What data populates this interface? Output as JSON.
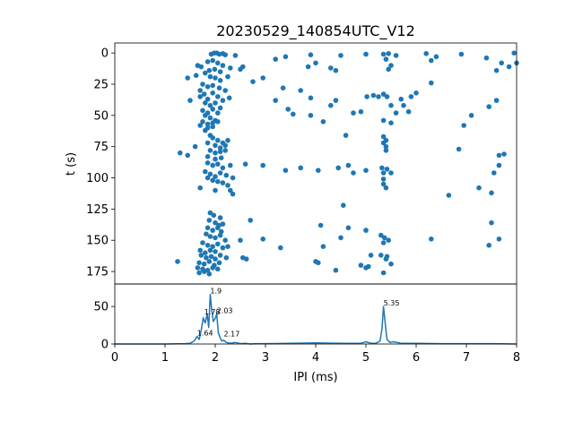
{
  "chart_data": [
    {
      "type": "scatter",
      "title": "20230529_140854UTC_V12",
      "xlabel": "",
      "ylabel": "t (s)",
      "xlim": [
        0,
        8
      ],
      "ylim": [
        185,
        -8
      ],
      "yticks": [
        0,
        25,
        50,
        75,
        100,
        125,
        150,
        175
      ],
      "color": "#1f77b4",
      "points": [
        [
          1.98,
          0
        ],
        [
          2.03,
          0
        ],
        [
          2.15,
          0.5
        ],
        [
          1.92,
          1
        ],
        [
          2.08,
          1
        ],
        [
          2.2,
          1.5
        ],
        [
          2.4,
          2
        ],
        [
          3.4,
          3
        ],
        [
          3.9,
          1.5
        ],
        [
          4.5,
          2
        ],
        [
          5.0,
          1
        ],
        [
          5.35,
          1
        ],
        [
          5.45,
          0.5
        ],
        [
          6.2,
          0.5
        ],
        [
          6.4,
          3
        ],
        [
          6.9,
          1
        ],
        [
          7.4,
          4
        ],
        [
          7.7,
          8
        ],
        [
          7.95,
          0
        ],
        [
          8.0,
          8
        ],
        [
          5.6,
          2
        ],
        [
          5.4,
          5
        ],
        [
          1.65,
          10
        ],
        [
          1.72,
          11
        ],
        [
          1.85,
          7
        ],
        [
          1.95,
          6
        ],
        [
          2.05,
          8
        ],
        [
          2.15,
          10
        ],
        [
          2.3,
          12
        ],
        [
          2.5,
          13
        ],
        [
          2.55,
          11
        ],
        [
          3.2,
          5
        ],
        [
          4.0,
          8
        ],
        [
          4.4,
          14
        ],
        [
          4.3,
          12
        ],
        [
          3.85,
          11
        ],
        [
          5.5,
          10
        ],
        [
          5.45,
          13
        ],
        [
          6.3,
          6
        ],
        [
          7.85,
          11
        ],
        [
          7.6,
          14
        ],
        [
          2.1,
          15
        ],
        [
          1.99,
          13
        ],
        [
          1.88,
          14
        ],
        [
          1.45,
          20
        ],
        [
          1.62,
          18
        ],
        [
          1.8,
          16
        ],
        [
          1.9,
          19
        ],
        [
          2.0,
          20
        ],
        [
          2.1,
          22
        ],
        [
          2.25,
          19
        ],
        [
          2.75,
          23
        ],
        [
          2.95,
          20
        ],
        [
          6.3,
          24
        ],
        [
          1.75,
          25
        ],
        [
          1.85,
          27
        ],
        [
          1.95,
          26
        ],
        [
          2.08,
          28
        ],
        [
          2.2,
          30
        ],
        [
          3.35,
          28
        ],
        [
          3.7,
          30
        ],
        [
          1.7,
          30
        ],
        [
          1.5,
          38
        ],
        [
          1.7,
          35
        ],
        [
          1.78,
          33
        ],
        [
          1.85,
          37
        ],
        [
          1.95,
          32
        ],
        [
          2.05,
          35
        ],
        [
          2.15,
          38
        ],
        [
          2.28,
          36
        ],
        [
          3.2,
          38
        ],
        [
          3.9,
          36
        ],
        [
          4.4,
          38
        ],
        [
          5.02,
          35
        ],
        [
          5.15,
          34
        ],
        [
          5.25,
          35
        ],
        [
          5.35,
          33
        ],
        [
          5.42,
          35
        ],
        [
          5.7,
          37
        ],
        [
          5.9,
          35
        ],
        [
          6.0,
          32
        ],
        [
          7.6,
          38
        ],
        [
          7.45,
          43
        ],
        [
          1.8,
          40
        ],
        [
          1.9,
          42
        ],
        [
          2.0,
          40
        ],
        [
          2.1,
          44
        ],
        [
          1.75,
          46
        ],
        [
          1.85,
          48
        ],
        [
          1.95,
          45
        ],
        [
          2.05,
          48
        ],
        [
          3.45,
          45
        ],
        [
          3.55,
          49
        ],
        [
          4.3,
          42
        ],
        [
          4.75,
          48
        ],
        [
          4.9,
          47
        ],
        [
          5.5,
          42
        ],
        [
          5.75,
          42
        ],
        [
          5.85,
          47
        ],
        [
          5.6,
          48
        ],
        [
          7.1,
          50
        ],
        [
          1.8,
          50
        ],
        [
          1.9,
          52
        ],
        [
          2.0,
          54
        ],
        [
          3.9,
          50
        ],
        [
          1.75,
          55
        ],
        [
          1.85,
          57
        ],
        [
          1.95,
          56
        ],
        [
          2.05,
          55
        ],
        [
          4.15,
          55
        ],
        [
          5.35,
          54
        ],
        [
          5.5,
          56
        ],
        [
          6.95,
          58
        ],
        [
          1.7,
          58
        ],
        [
          1.85,
          60
        ],
        [
          1.95,
          59
        ],
        [
          1.8,
          62
        ],
        [
          4.6,
          66
        ],
        [
          1.9,
          66
        ],
        [
          1.95,
          68
        ],
        [
          2.05,
          70
        ],
        [
          2.15,
          72
        ],
        [
          2.25,
          70
        ],
        [
          5.35,
          67
        ],
        [
          5.4,
          70
        ],
        [
          1.85,
          72
        ],
        [
          2.0,
          74
        ],
        [
          2.1,
          76
        ],
        [
          2.2,
          74
        ],
        [
          5.35,
          72
        ],
        [
          5.4,
          75
        ],
        [
          1.6,
          75
        ],
        [
          6.85,
          77
        ],
        [
          1.9,
          78
        ],
        [
          2.0,
          80
        ],
        [
          2.1,
          79
        ],
        [
          2.2,
          78
        ],
        [
          5.4,
          78
        ],
        [
          1.3,
          80
        ],
        [
          1.45,
          82
        ],
        [
          1.85,
          83
        ],
        [
          2.0,
          85
        ],
        [
          2.12,
          84
        ],
        [
          7.65,
          82
        ],
        [
          7.75,
          81
        ],
        [
          1.85,
          88
        ],
        [
          1.95,
          90
        ],
        [
          2.05,
          89
        ],
        [
          2.15,
          92
        ],
        [
          2.3,
          90
        ],
        [
          2.6,
          89
        ],
        [
          2.95,
          90
        ],
        [
          3.4,
          94
        ],
        [
          3.7,
          92
        ],
        [
          4.05,
          94
        ],
        [
          4.45,
          92
        ],
        [
          4.65,
          90
        ],
        [
          5.0,
          94
        ],
        [
          5.32,
          92
        ],
        [
          5.42,
          93
        ],
        [
          5.5,
          96
        ],
        [
          5.35,
          96
        ],
        [
          7.55,
          96
        ],
        [
          1.8,
          95
        ],
        [
          1.9,
          97
        ],
        [
          2.0,
          99
        ],
        [
          2.1,
          96
        ],
        [
          2.22,
          98
        ],
        [
          2.35,
          100
        ],
        [
          4.75,
          96
        ],
        [
          7.65,
          90
        ],
        [
          1.85,
          100
        ],
        [
          1.95,
          102
        ],
        [
          2.05,
          103
        ],
        [
          2.15,
          104
        ],
        [
          2.25,
          106
        ],
        [
          5.35,
          101
        ],
        [
          1.7,
          108
        ],
        [
          2.0,
          110
        ],
        [
          2.3,
          110
        ],
        [
          2.35,
          113
        ],
        [
          5.35,
          105
        ],
        [
          5.4,
          108
        ],
        [
          7.25,
          108
        ],
        [
          6.65,
          114
        ],
        [
          7.5,
          112
        ],
        [
          4.55,
          122
        ],
        [
          1.9,
          128
        ],
        [
          1.97,
          130
        ],
        [
          2.1,
          132
        ],
        [
          1.88,
          134
        ],
        [
          2.0,
          136
        ],
        [
          2.07,
          138
        ],
        [
          2.15,
          137
        ],
        [
          2.7,
          134
        ],
        [
          4.1,
          138
        ],
        [
          7.5,
          136
        ],
        [
          1.85,
          140
        ],
        [
          1.95,
          142
        ],
        [
          2.05,
          140
        ],
        [
          2.12,
          143
        ],
        [
          4.65,
          140
        ],
        [
          5.0,
          142
        ],
        [
          1.82,
          145
        ],
        [
          1.9,
          147
        ],
        [
          2.0,
          148
        ],
        [
          2.1,
          146
        ],
        [
          2.2,
          150
        ],
        [
          2.5,
          150
        ],
        [
          2.95,
          149
        ],
        [
          4.5,
          148
        ],
        [
          5.3,
          146
        ],
        [
          5.37,
          148
        ],
        [
          5.45,
          150
        ],
        [
          6.3,
          149
        ],
        [
          7.65,
          149
        ],
        [
          7.45,
          154
        ],
        [
          1.75,
          152
        ],
        [
          1.85,
          154
        ],
        [
          1.95,
          155
        ],
        [
          2.05,
          153
        ],
        [
          2.15,
          156
        ],
        [
          2.25,
          155
        ],
        [
          3.3,
          156
        ],
        [
          4.15,
          155
        ],
        [
          5.35,
          152
        ],
        [
          1.7,
          158
        ],
        [
          1.8,
          160
        ],
        [
          1.9,
          158
        ],
        [
          2.0,
          159
        ],
        [
          1.72,
          162
        ],
        [
          1.82,
          164
        ],
        [
          1.92,
          163
        ],
        [
          2.0,
          165
        ],
        [
          2.1,
          162
        ],
        [
          2.22,
          164
        ],
        [
          2.55,
          164
        ],
        [
          2.62,
          165
        ],
        [
          5.3,
          162
        ],
        [
          5.42,
          163
        ],
        [
          5.1,
          162
        ],
        [
          5.4,
          165
        ],
        [
          1.25,
          167
        ],
        [
          1.68,
          168
        ],
        [
          1.78,
          169
        ],
        [
          1.88,
          167
        ],
        [
          1.98,
          170
        ],
        [
          2.08,
          168
        ],
        [
          4.0,
          167
        ],
        [
          4.05,
          168
        ],
        [
          4.9,
          170
        ],
        [
          5.0,
          172
        ],
        [
          5.05,
          171
        ],
        [
          5.5,
          169
        ],
        [
          1.65,
          172
        ],
        [
          1.75,
          173
        ],
        [
          1.85,
          174
        ],
        [
          1.95,
          172
        ],
        [
          2.05,
          173
        ],
        [
          4.4,
          174
        ],
        [
          5.35,
          176
        ],
        [
          1.68,
          176
        ],
        [
          1.78,
          175
        ],
        [
          1.88,
          177
        ]
      ]
    },
    {
      "type": "line",
      "xlabel": "IPI (ms)",
      "ylabel": "",
      "xlim": [
        0,
        8
      ],
      "ylim": [
        0,
        80
      ],
      "xticks": [
        0,
        1,
        2,
        3,
        4,
        5,
        6,
        7,
        8
      ],
      "yticks": [
        0,
        50
      ],
      "color": "#1f77b4",
      "x": [
        0,
        1.0,
        1.4,
        1.5,
        1.58,
        1.64,
        1.68,
        1.72,
        1.76,
        1.8,
        1.84,
        1.87,
        1.9,
        1.93,
        1.96,
        2.0,
        2.03,
        2.06,
        2.1,
        2.13,
        2.17,
        2.22,
        2.3,
        2.4,
        2.5,
        2.6,
        2.7,
        2.8,
        3.0,
        3.5,
        4.0,
        4.5,
        4.9,
        5.0,
        5.1,
        5.2,
        5.28,
        5.32,
        5.35,
        5.38,
        5.42,
        5.48,
        5.55,
        5.7,
        6.0,
        6.5,
        7.0,
        7.5,
        8.0
      ],
      "y": [
        0,
        0,
        0.5,
        1,
        4,
        10,
        6,
        18,
        35,
        28,
        40,
        22,
        66,
        45,
        30,
        34,
        40,
        15,
        8,
        4,
        5,
        2,
        1,
        2,
        0.5,
        1,
        0,
        0.5,
        0.5,
        1,
        1.5,
        1,
        1,
        3,
        1,
        1,
        4,
        20,
        50,
        30,
        6,
        2,
        3,
        1,
        1,
        0.5,
        0.5,
        0.5,
        0
      ],
      "annotations": [
        {
          "x": 1.64,
          "y": 10,
          "label": "1.64"
        },
        {
          "x": 1.78,
          "y": 38,
          "label": "1.78"
        },
        {
          "x": 1.9,
          "y": 66,
          "label": "1.9"
        },
        {
          "x": 2.03,
          "y": 40,
          "label": "2.03"
        },
        {
          "x": 2.17,
          "y": 9,
          "label": "2.17"
        },
        {
          "x": 5.35,
          "y": 50,
          "label": "5.35"
        }
      ]
    }
  ]
}
